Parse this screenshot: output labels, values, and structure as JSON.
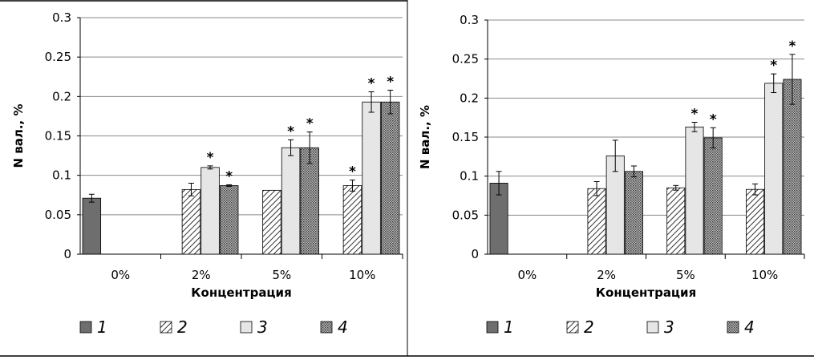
{
  "chart_data": [
    {
      "type": "bar",
      "title": "",
      "xlabel": "Концентрация",
      "ylabel": "N вал., %",
      "ylim": [
        0,
        0.3
      ],
      "yticks": [
        "0",
        "0.05",
        "0.1",
        "0.15",
        "0.2",
        "0.25",
        "0.3"
      ],
      "categories": [
        "0%",
        "2%",
        "5%",
        "10%"
      ],
      "grid": true,
      "legend_position": "bottom",
      "series": [
        {
          "name": "1",
          "pattern": "solid-dark",
          "color": "#6e6e6e",
          "values": [
            0.071,
            null,
            null,
            null
          ],
          "errors": [
            0.005,
            null,
            null,
            null
          ],
          "significant": [
            false,
            false,
            false,
            false
          ]
        },
        {
          "name": "2",
          "pattern": "diagonal-hatch",
          "color": "#000000",
          "values": [
            null,
            0.082,
            0.081,
            0.087
          ],
          "errors": [
            null,
            0.008,
            0.0,
            0.007
          ],
          "significant": [
            false,
            false,
            false,
            true
          ]
        },
        {
          "name": "3",
          "pattern": "light-solid",
          "color": "#e6e6e6",
          "values": [
            null,
            0.11,
            0.135,
            0.193
          ],
          "errors": [
            null,
            0.002,
            0.01,
            0.013
          ],
          "significant": [
            false,
            true,
            true,
            true
          ]
        },
        {
          "name": "4",
          "pattern": "dense-crosshatch",
          "color": "#8c8c8c",
          "values": [
            null,
            0.087,
            0.135,
            0.193
          ],
          "errors": [
            null,
            0.001,
            0.02,
            0.015
          ],
          "significant": [
            false,
            true,
            true,
            true
          ]
        }
      ]
    },
    {
      "type": "bar",
      "title": "",
      "xlabel": "Концентрация",
      "ylabel": "N вал., %",
      "ylim": [
        0,
        0.3
      ],
      "yticks": [
        "0",
        "0.05",
        "0.1",
        "0.15",
        "0.2",
        "0.25",
        "0.3"
      ],
      "categories": [
        "0%",
        "2%",
        "5%",
        "10%"
      ],
      "grid": true,
      "legend_position": "bottom",
      "series": [
        {
          "name": "1",
          "pattern": "solid-dark",
          "color": "#6e6e6e",
          "values": [
            0.091,
            null,
            null,
            null
          ],
          "errors": [
            0.015,
            null,
            null,
            null
          ],
          "significant": [
            false,
            false,
            false,
            false
          ]
        },
        {
          "name": "2",
          "pattern": "diagonal-hatch",
          "color": "#000000",
          "values": [
            null,
            0.084,
            0.085,
            0.083
          ],
          "errors": [
            null,
            0.009,
            0.003,
            0.007
          ],
          "significant": [
            false,
            false,
            false,
            false
          ]
        },
        {
          "name": "3",
          "pattern": "light-solid",
          "color": "#e6e6e6",
          "values": [
            null,
            0.126,
            0.163,
            0.219
          ],
          "errors": [
            null,
            0.02,
            0.006,
            0.012
          ],
          "significant": [
            false,
            false,
            true,
            true
          ]
        },
        {
          "name": "4",
          "pattern": "dense-crosshatch",
          "color": "#8c8c8c",
          "values": [
            null,
            0.106,
            0.149,
            0.224
          ],
          "errors": [
            null,
            0.007,
            0.013,
            0.032
          ],
          "significant": [
            false,
            false,
            true,
            true
          ]
        }
      ]
    }
  ],
  "significance_mark": "*"
}
